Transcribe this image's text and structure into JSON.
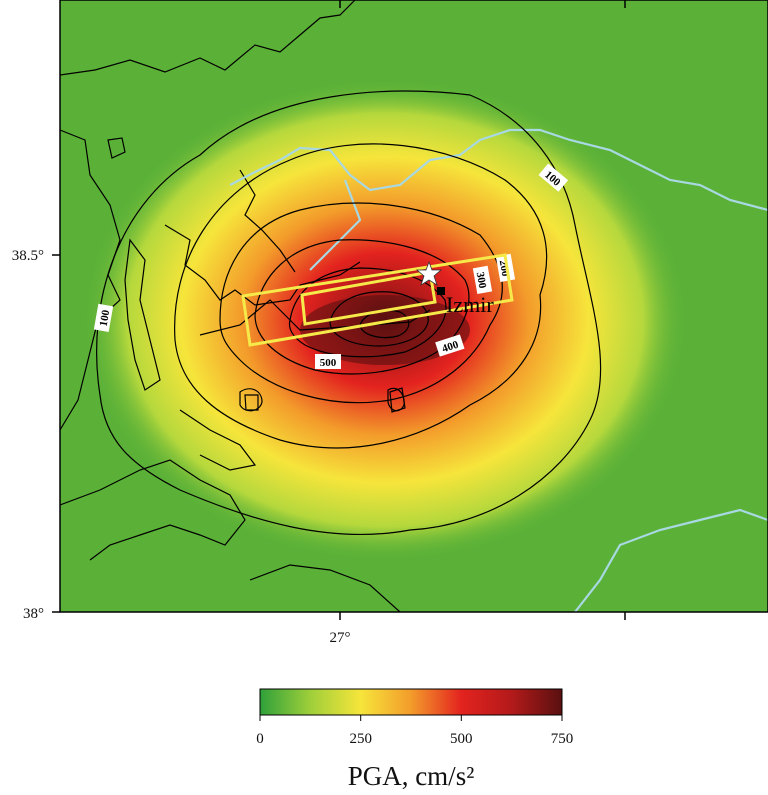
{
  "map": {
    "axes": {
      "lat_labels": [
        "38.5°",
        "38°"
      ],
      "lon_labels": [
        "27°"
      ]
    },
    "contour_labels": [
      "100",
      "100",
      "500",
      "400",
      "300",
      "200"
    ],
    "epicenter_marker": "star",
    "city": {
      "name": "Izmir"
    },
    "colors": {
      "background_green": "#5fb43a",
      "fault_outline": "#f6e94a",
      "rivers": "#a8d8e2",
      "contours": "#000000",
      "epicenter_star": "#ffffff"
    }
  },
  "colorbar": {
    "title": "PGA, cm/s²",
    "tick_labels": [
      "0",
      "250",
      "500",
      "750"
    ],
    "range": [
      0,
      750
    ],
    "stops": [
      {
        "value": 0,
        "color": "#2fa03a"
      },
      {
        "value": 125,
        "color": "#9fcf3a"
      },
      {
        "value": 250,
        "color": "#f6e53b"
      },
      {
        "value": 375,
        "color": "#f39c2b"
      },
      {
        "value": 500,
        "color": "#e3231f"
      },
      {
        "value": 625,
        "color": "#b31a1a"
      },
      {
        "value": 750,
        "color": "#5a1010"
      }
    ]
  }
}
